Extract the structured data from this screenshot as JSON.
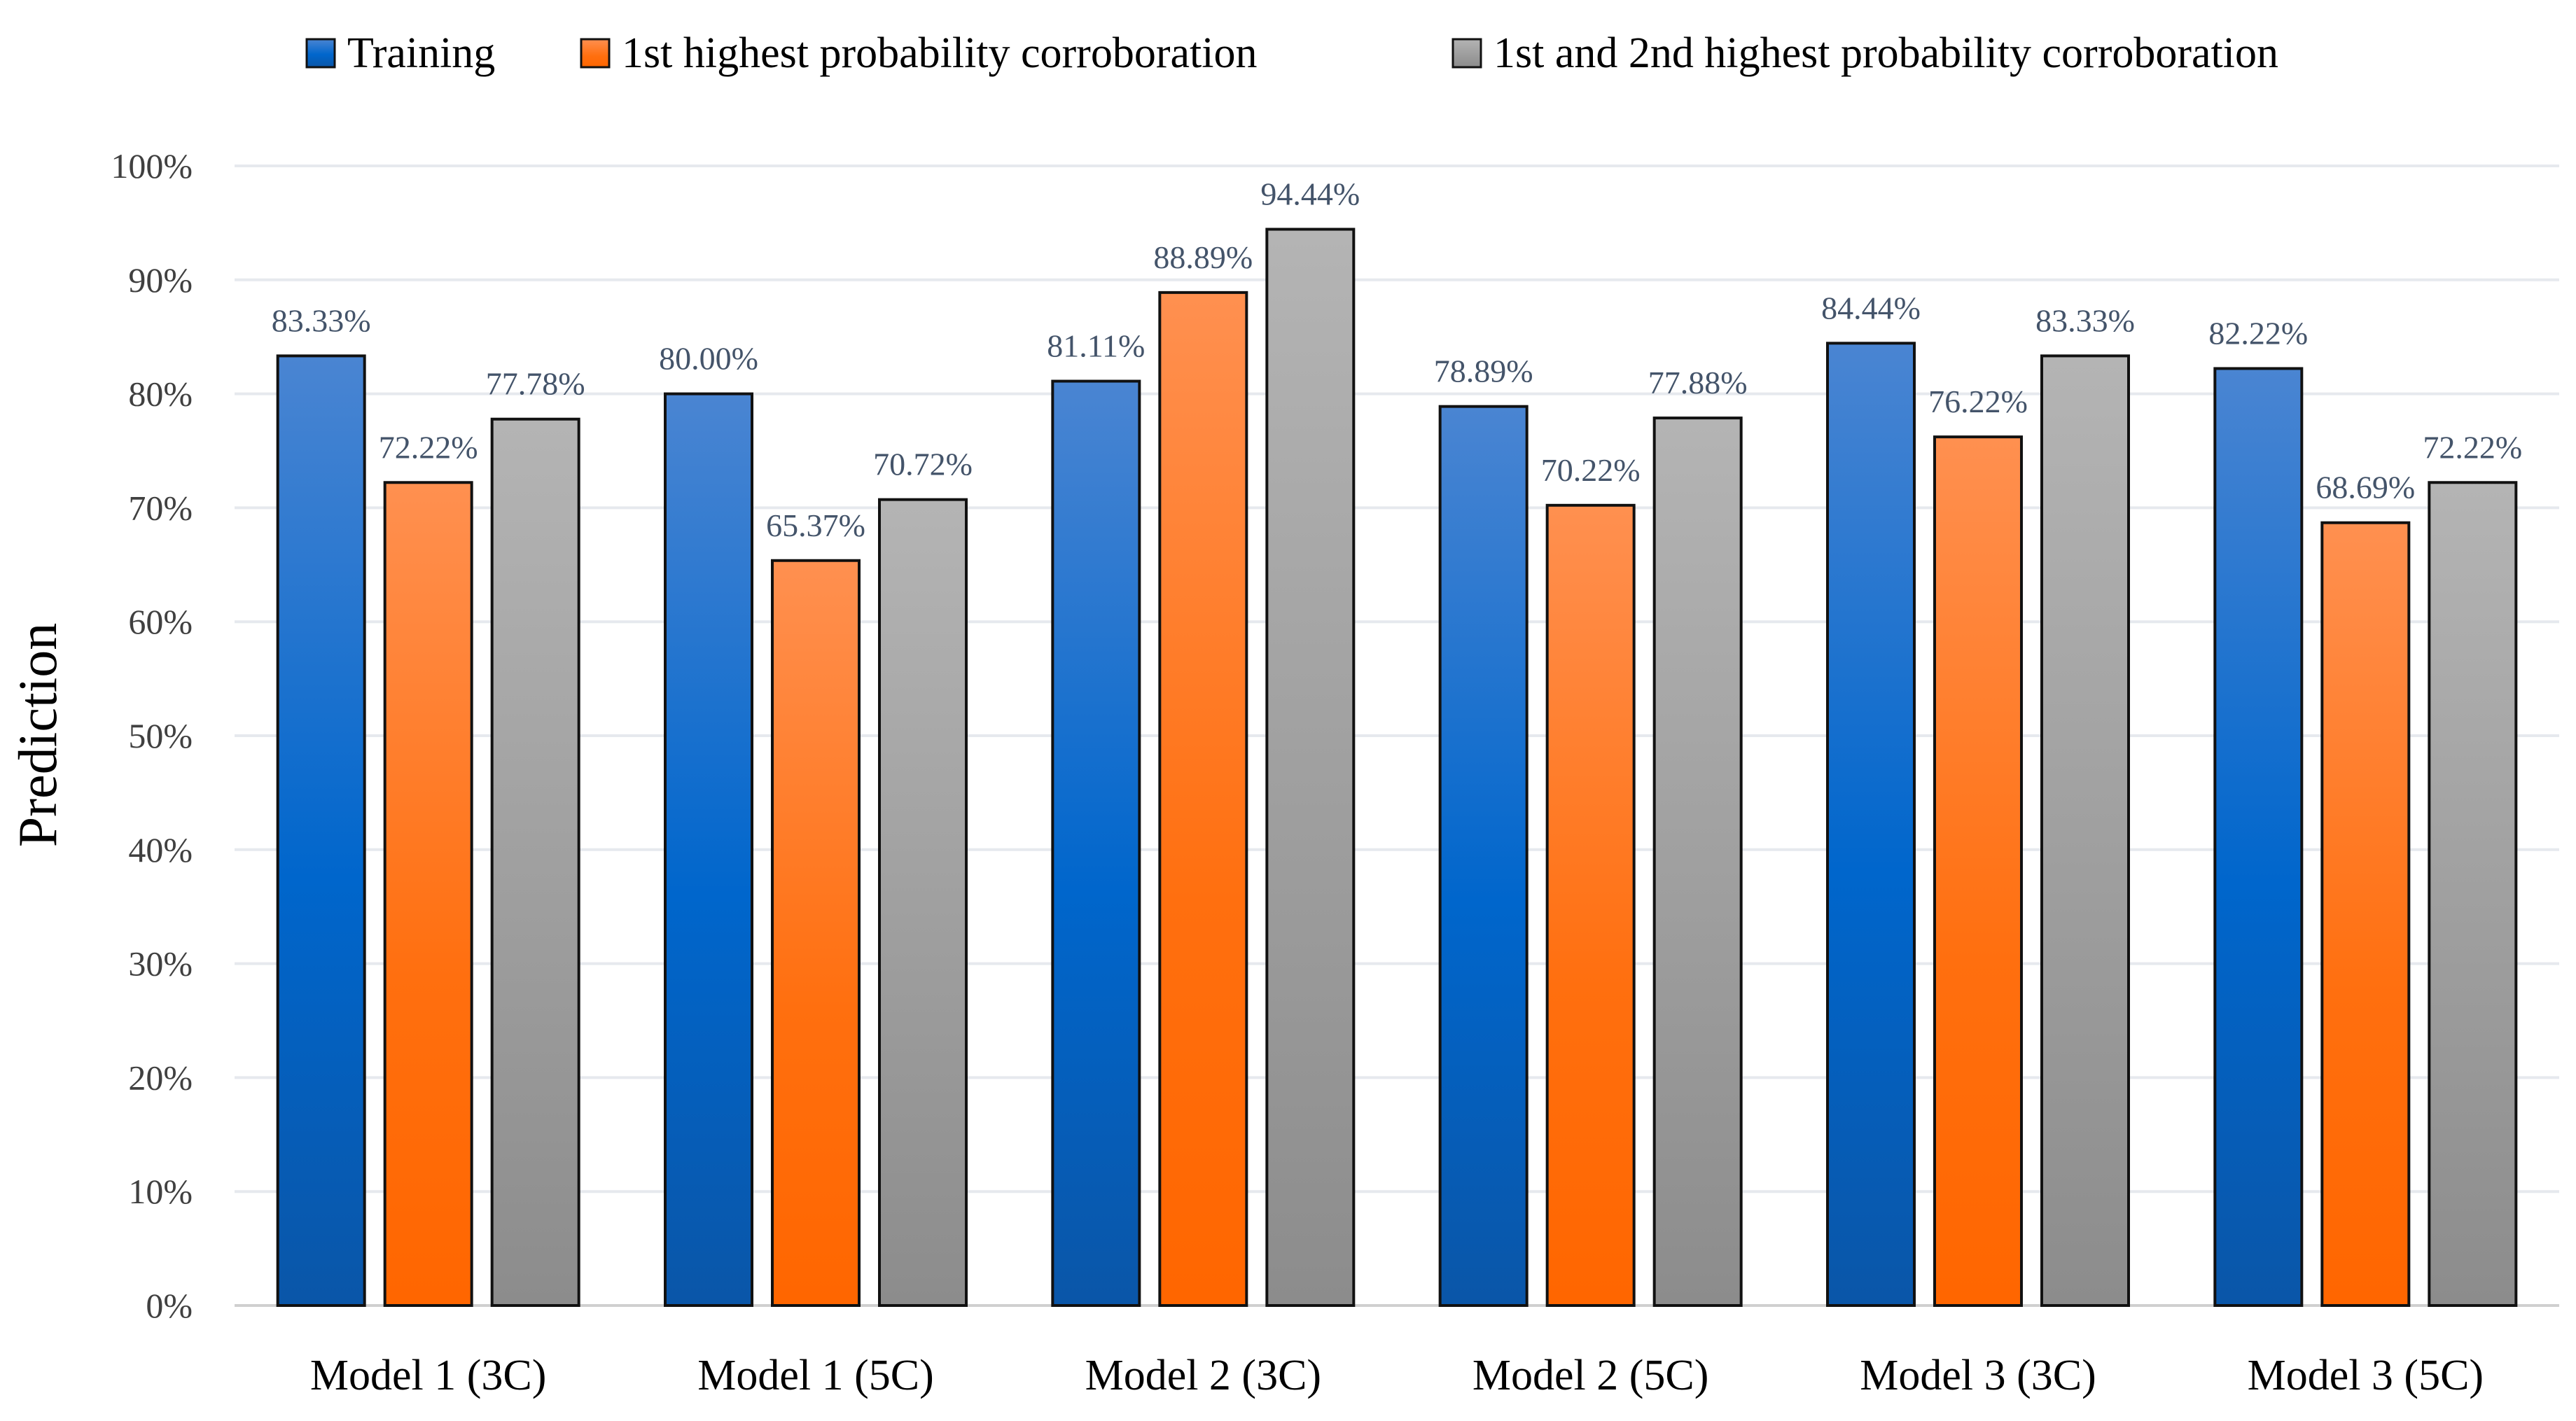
{
  "chart_data": {
    "type": "bar",
    "title": "",
    "xlabel": "",
    "ylabel": "Prediction",
    "ylim": [
      0,
      100
    ],
    "yticks": [
      "0%",
      "10%",
      "20%",
      "30%",
      "40%",
      "50%",
      "60%",
      "70%",
      "80%",
      "90%",
      "100%"
    ],
    "grid": true,
    "legend_position": "top",
    "categories": [
      "Model 1 (3C)",
      "Model 1 (5C)",
      "Model 2 (3C)",
      "Model 2 (5C)",
      "Model 3 (3C)",
      "Model 3 (5C)"
    ],
    "series": [
      {
        "name": "Training",
        "color": "#0066cc",
        "values": [
          83.33,
          80.0,
          81.11,
          78.89,
          84.44,
          82.22
        ],
        "labels": [
          "83.33%",
          "80.00%",
          "81.11%",
          "78.89%",
          "84.44%",
          "82.22%"
        ]
      },
      {
        "name": "1st highest probability corroboration",
        "color": "#ff6a00",
        "values": [
          72.22,
          65.37,
          88.89,
          70.22,
          76.22,
          68.69
        ],
        "labels": [
          "72.22%",
          "65.37%",
          "88.89%",
          "70.22%",
          "76.22%",
          "68.69%"
        ]
      },
      {
        "name": "1st and 2nd highest probability corroboration",
        "color": "#a0a0a0",
        "values": [
          77.78,
          70.72,
          94.44,
          77.88,
          83.33,
          72.22
        ],
        "labels": [
          "77.78%",
          "70.72%",
          "94.44%",
          "77.88%",
          "83.33%",
          "72.22%"
        ]
      }
    ]
  }
}
